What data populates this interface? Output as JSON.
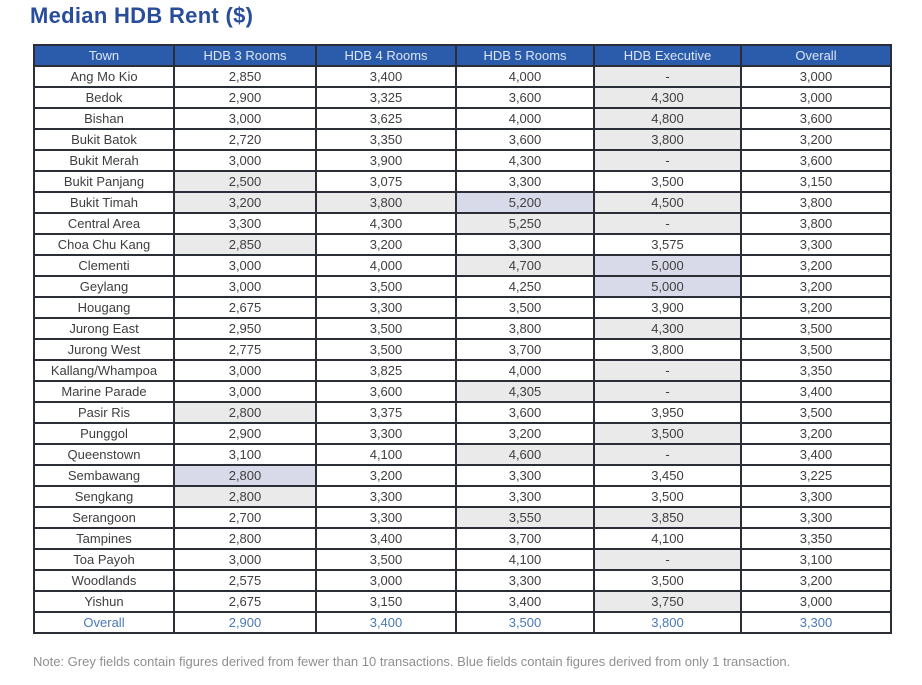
{
  "colors": {
    "title_text": "#2a4d9b",
    "header_bg": "#2b5cab",
    "header_text": "#dce6f6",
    "border": "#2c2e37",
    "body_text": "#3e3e3e",
    "grey_cell": "#eaeaea",
    "blue_cell": "#d9dae9",
    "overall_text": "#4a79b6",
    "note_text": "#8f8f8f"
  },
  "chart_data": {
    "type": "table",
    "title": "Median HDB Rent ($)",
    "columns": [
      "Town",
      "HDB 3 Rooms",
      "HDB 4 Rooms",
      "HDB 5 Rooms",
      "HDB Executive",
      "Overall"
    ],
    "cell_flag_legend": {
      "w": "white - normal",
      "g": "grey - figure derived from fewer than 10 transactions",
      "b": "blue - figure derived from only 1 transaction"
    },
    "rows": [
      {
        "town": "Ang Mo Kio",
        "values": [
          "2,850",
          "3,400",
          "4,000",
          "-",
          "3,000"
        ],
        "flags": [
          "w",
          "w",
          "w",
          "g",
          "w"
        ]
      },
      {
        "town": "Bedok",
        "values": [
          "2,900",
          "3,325",
          "3,600",
          "4,300",
          "3,000"
        ],
        "flags": [
          "w",
          "w",
          "w",
          "g",
          "w"
        ]
      },
      {
        "town": "Bishan",
        "values": [
          "3,000",
          "3,625",
          "4,000",
          "4,800",
          "3,600"
        ],
        "flags": [
          "w",
          "w",
          "w",
          "g",
          "w"
        ]
      },
      {
        "town": "Bukit Batok",
        "values": [
          "2,720",
          "3,350",
          "3,600",
          "3,800",
          "3,200"
        ],
        "flags": [
          "w",
          "w",
          "w",
          "g",
          "w"
        ]
      },
      {
        "town": "Bukit Merah",
        "values": [
          "3,000",
          "3,900",
          "4,300",
          "-",
          "3,600"
        ],
        "flags": [
          "w",
          "w",
          "w",
          "g",
          "w"
        ]
      },
      {
        "town": "Bukit Panjang",
        "values": [
          "2,500",
          "3,075",
          "3,300",
          "3,500",
          "3,150"
        ],
        "flags": [
          "g",
          "w",
          "w",
          "w",
          "w"
        ]
      },
      {
        "town": "Bukit Timah",
        "values": [
          "3,200",
          "3,800",
          "5,200",
          "4,500",
          "3,800"
        ],
        "flags": [
          "g",
          "g",
          "b",
          "g",
          "w"
        ]
      },
      {
        "town": "Central Area",
        "values": [
          "3,300",
          "4,300",
          "5,250",
          "-",
          "3,800"
        ],
        "flags": [
          "w",
          "w",
          "g",
          "g",
          "w"
        ]
      },
      {
        "town": "Choa Chu Kang",
        "values": [
          "2,850",
          "3,200",
          "3,300",
          "3,575",
          "3,300"
        ],
        "flags": [
          "g",
          "w",
          "w",
          "w",
          "w"
        ]
      },
      {
        "town": "Clementi",
        "values": [
          "3,000",
          "4,000",
          "4,700",
          "5,000",
          "3,200"
        ],
        "flags": [
          "w",
          "w",
          "g",
          "b",
          "w"
        ]
      },
      {
        "town": "Geylang",
        "values": [
          "3,000",
          "3,500",
          "4,250",
          "5,000",
          "3,200"
        ],
        "flags": [
          "w",
          "w",
          "w",
          "b",
          "w"
        ]
      },
      {
        "town": "Hougang",
        "values": [
          "2,675",
          "3,300",
          "3,500",
          "3,900",
          "3,200"
        ],
        "flags": [
          "w",
          "w",
          "w",
          "w",
          "w"
        ]
      },
      {
        "town": "Jurong East",
        "values": [
          "2,950",
          "3,500",
          "3,800",
          "4,300",
          "3,500"
        ],
        "flags": [
          "w",
          "w",
          "w",
          "g",
          "w"
        ]
      },
      {
        "town": "Jurong West",
        "values": [
          "2,775",
          "3,500",
          "3,700",
          "3,800",
          "3,500"
        ],
        "flags": [
          "w",
          "w",
          "w",
          "w",
          "w"
        ]
      },
      {
        "town": "Kallang/Whampoa",
        "values": [
          "3,000",
          "3,825",
          "4,000",
          "-",
          "3,350"
        ],
        "flags": [
          "w",
          "w",
          "w",
          "g",
          "w"
        ]
      },
      {
        "town": "Marine Parade",
        "values": [
          "3,000",
          "3,600",
          "4,305",
          "-",
          "3,400"
        ],
        "flags": [
          "w",
          "w",
          "g",
          "g",
          "w"
        ]
      },
      {
        "town": "Pasir Ris",
        "values": [
          "2,800",
          "3,375",
          "3,600",
          "3,950",
          "3,500"
        ],
        "flags": [
          "g",
          "w",
          "w",
          "w",
          "w"
        ]
      },
      {
        "town": "Punggol",
        "values": [
          "2,900",
          "3,300",
          "3,200",
          "3,500",
          "3,200"
        ],
        "flags": [
          "w",
          "w",
          "w",
          "g",
          "w"
        ]
      },
      {
        "town": "Queenstown",
        "values": [
          "3,100",
          "4,100",
          "4,600",
          "-",
          "3,400"
        ],
        "flags": [
          "w",
          "w",
          "g",
          "g",
          "w"
        ]
      },
      {
        "town": "Sembawang",
        "values": [
          "2,800",
          "3,200",
          "3,300",
          "3,450",
          "3,225"
        ],
        "flags": [
          "b",
          "w",
          "w",
          "w",
          "w"
        ]
      },
      {
        "town": "Sengkang",
        "values": [
          "2,800",
          "3,300",
          "3,300",
          "3,500",
          "3,300"
        ],
        "flags": [
          "g",
          "w",
          "w",
          "w",
          "w"
        ]
      },
      {
        "town": "Serangoon",
        "values": [
          "2,700",
          "3,300",
          "3,550",
          "3,850",
          "3,300"
        ],
        "flags": [
          "w",
          "w",
          "g",
          "g",
          "w"
        ]
      },
      {
        "town": "Tampines",
        "values": [
          "2,800",
          "3,400",
          "3,700",
          "4,100",
          "3,350"
        ],
        "flags": [
          "w",
          "w",
          "w",
          "w",
          "w"
        ]
      },
      {
        "town": "Toa Payoh",
        "values": [
          "3,000",
          "3,500",
          "4,100",
          "-",
          "3,100"
        ],
        "flags": [
          "w",
          "w",
          "w",
          "g",
          "w"
        ]
      },
      {
        "town": "Woodlands",
        "values": [
          "2,575",
          "3,000",
          "3,300",
          "3,500",
          "3,200"
        ],
        "flags": [
          "w",
          "w",
          "w",
          "w",
          "w"
        ]
      },
      {
        "town": "Yishun",
        "values": [
          "2,675",
          "3,150",
          "3,400",
          "3,750",
          "3,000"
        ],
        "flags": [
          "w",
          "w",
          "w",
          "g",
          "w"
        ]
      }
    ],
    "overall_row": {
      "town": "Overall",
      "values": [
        "2,900",
        "3,400",
        "3,500",
        "3,800",
        "3,300"
      ]
    },
    "note": "Note: Grey fields contain figures derived from fewer than 10 transactions. Blue fields contain figures derived from only 1 transaction."
  }
}
